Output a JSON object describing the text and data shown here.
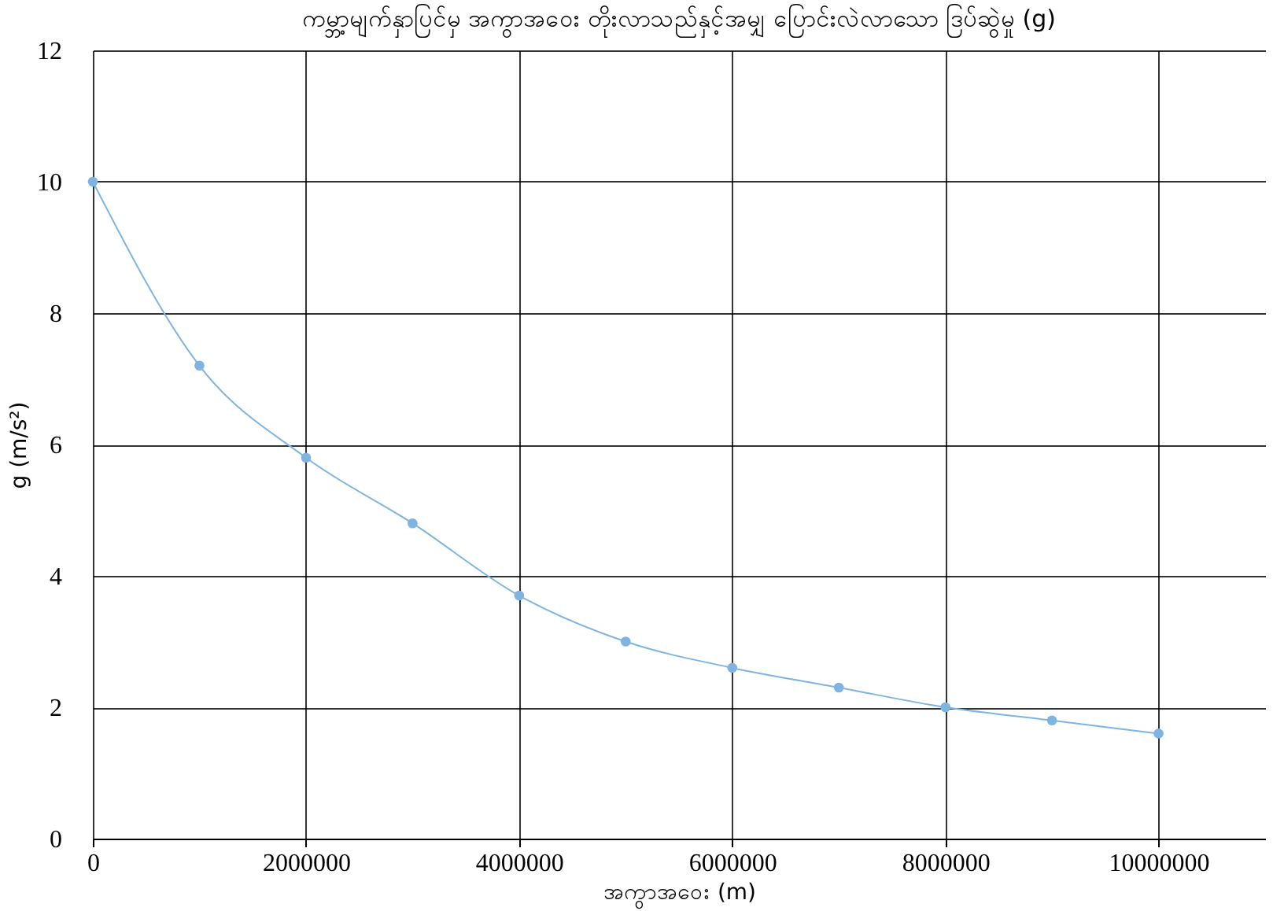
{
  "chart_data": {
    "type": "line",
    "title": "ကမ္ဘာ့မျက်နှာပြင်မှ အကွာအဝေး တိုးလာသည်နှင့်အမျှ ပြောင်းလဲလာသော ဒြပ်ဆွဲမှု (g)",
    "xlabel": "အကွာအဝေး (m)",
    "ylabel": "g (m/s²)",
    "x": [
      0,
      1000000,
      2000000,
      3000000,
      4000000,
      5000000,
      6000000,
      7000000,
      8000000,
      9000000,
      10000000
    ],
    "series": [
      {
        "color": "#7fb4e0",
        "values": [
          10,
          7.2,
          5.8,
          4.8,
          3.7,
          3.0,
          2.6,
          2.3,
          2.0,
          1.8,
          1.6
        ]
      }
    ],
    "xlim": [
      0,
      11000000
    ],
    "xticks": [
      0,
      2000000,
      4000000,
      6000000,
      8000000,
      10000000
    ],
    "ylim": [
      0,
      12
    ],
    "yticks": [
      0,
      2,
      4,
      6,
      8,
      10,
      12
    ],
    "grid": true,
    "marker": "circle",
    "legend": false
  }
}
